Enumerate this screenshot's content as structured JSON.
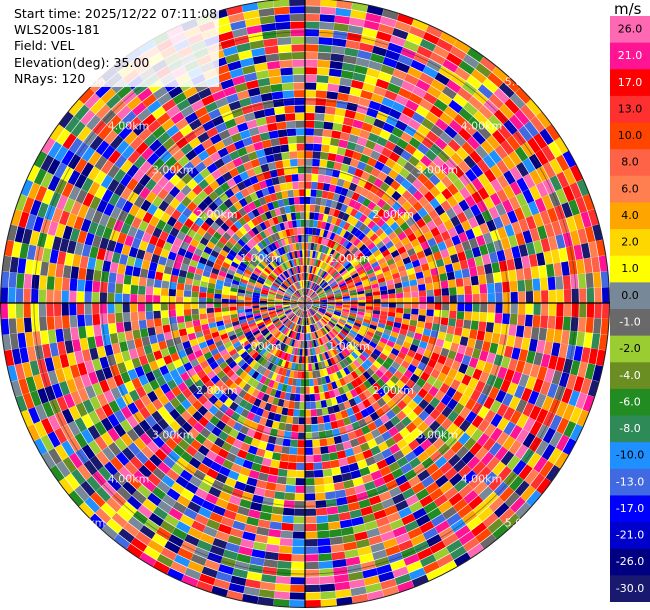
{
  "header": {
    "start_time": "Start time: 2025/12/22 07:11:08",
    "instrument": "WLS200s-181",
    "field": "Field: VEL",
    "elevation": "Elevation(deg): 35.00",
    "nrays": "NRays: 120"
  },
  "colorbar": {
    "unit": "m/s",
    "ticks": [
      "26.0",
      "21.0",
      "17.0",
      "13.0",
      "10.0",
      "8.0",
      "6.0",
      "4.0",
      "2.0",
      "1.0",
      "0.0",
      "-1.0",
      "-2.0",
      "-4.0",
      "-6.0",
      "-8.0",
      "-10.0",
      "-13.0",
      "-17.0",
      "-21.0",
      "-26.0",
      "-30.0"
    ],
    "colors": [
      "#ff69b4",
      "#ff1493",
      "#ff0000",
      "#ff3030",
      "#ff4500",
      "#ff6347",
      "#ff7f50",
      "#ffa500",
      "#ffd700",
      "#ffff00",
      "#778899",
      "#696969",
      "#9acd32",
      "#6b8e23",
      "#228b22",
      "#2e8b57",
      "#1e90ff",
      "#4169e1",
      "#0000ff",
      "#0000cd",
      "#000080",
      "#191970"
    ]
  },
  "chart_data": {
    "type": "heatmap",
    "projection": "polar-ppi",
    "n_rays": 120,
    "n_range_gates": 40,
    "max_range_km": 4.5,
    "range_ring_labels": [
      "1.00km",
      "2.00km",
      "3.00km",
      "4.00km",
      "5.00km"
    ],
    "cross_axes": true,
    "value_pattern": "noisy radial velocity field; positive (warm) values concentrated east/northeast of center"
  }
}
